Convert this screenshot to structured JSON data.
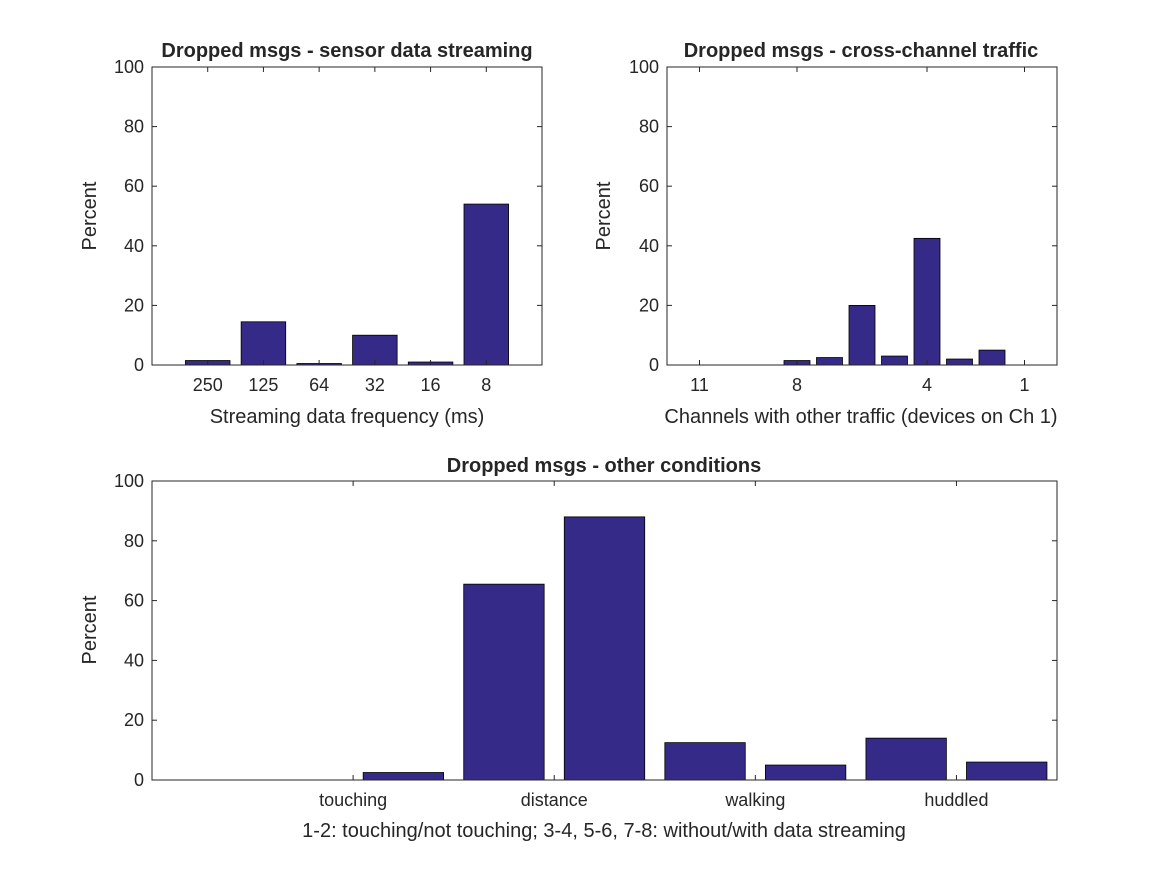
{
  "colors": {
    "bar": "#352a87",
    "axis": "#262626",
    "background": "#ffffff"
  },
  "chart_data": [
    {
      "type": "bar",
      "title": "Dropped msgs - sensor data streaming",
      "xlabel": "Streaming data frequency (ms)",
      "ylabel": "Percent",
      "ylim": [
        0,
        100
      ],
      "yticks": [
        0,
        20,
        40,
        60,
        80,
        100
      ],
      "categories": [
        "250",
        "125",
        "64",
        "32",
        "16",
        "8"
      ],
      "values": [
        1.5,
        14.5,
        0.5,
        10,
        1,
        54
      ],
      "grid": false
    },
    {
      "type": "bar",
      "title": "Dropped msgs - cross-channel traffic",
      "xlabel": "Channels with other traffic (devices on Ch 1)",
      "ylabel": "Percent",
      "ylim": [
        0,
        100
      ],
      "yticks": [
        0,
        20,
        40,
        60,
        80,
        100
      ],
      "x": [
        11,
        10,
        9,
        8,
        7,
        6,
        5,
        4,
        3,
        2,
        1
      ],
      "values": [
        0,
        0,
        0,
        1.5,
        2.5,
        20,
        3,
        42.5,
        2,
        5,
        0
      ],
      "xtick_values": [
        11,
        8,
        4,
        1
      ],
      "xtick_labels": [
        "11",
        "8",
        "4",
        "1"
      ],
      "grid": false
    },
    {
      "type": "bar",
      "title": "Dropped msgs - other conditions",
      "xlabel": "1-2: touching/not touching; 3-4, 5-6, 7-8: without/with data streaming",
      "ylabel": "Percent",
      "ylim": [
        0,
        100
      ],
      "yticks": [
        0,
        20,
        40,
        60,
        80,
        100
      ],
      "x": [
        1,
        2,
        3,
        4,
        5,
        6,
        7,
        8
      ],
      "values": [
        0,
        2.5,
        65.5,
        88,
        12.5,
        5,
        14,
        6
      ],
      "xtick_values": [
        1.5,
        3.5,
        5.5,
        7.5
      ],
      "xtick_labels": [
        "touching",
        "distance",
        "walking",
        "huddled"
      ],
      "grid": false
    }
  ]
}
